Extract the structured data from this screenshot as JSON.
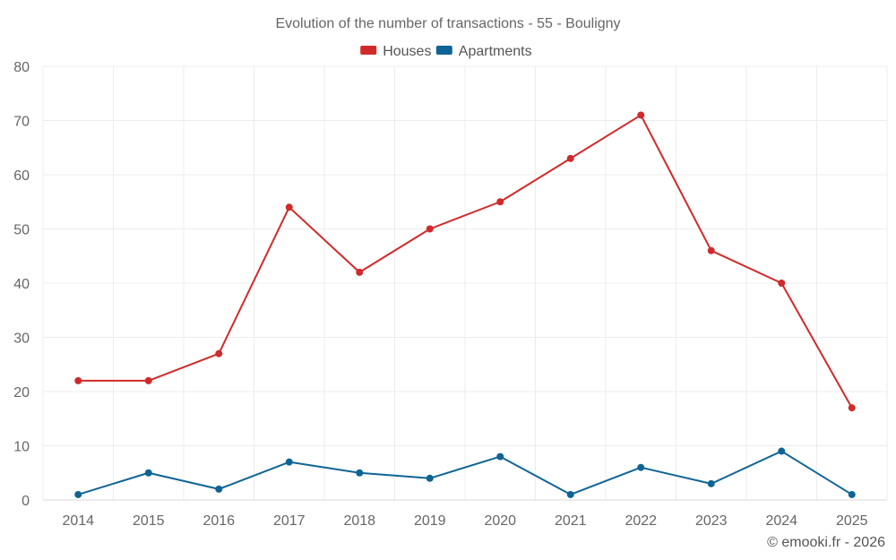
{
  "chart_data": {
    "type": "line",
    "title": "Evolution of the number of transactions - 55 - Bouligny",
    "xlabel": "",
    "ylabel": "",
    "categories": [
      "2014",
      "2015",
      "2016",
      "2017",
      "2018",
      "2019",
      "2020",
      "2021",
      "2022",
      "2023",
      "2024",
      "2025"
    ],
    "ylim": [
      0,
      80
    ],
    "yticks": [
      0,
      10,
      20,
      30,
      40,
      50,
      60,
      70,
      80
    ],
    "grid": true,
    "legend_position": "top-center",
    "series": [
      {
        "name": "Houses",
        "color": "#d12a2a",
        "values": [
          22,
          22,
          27,
          54,
          42,
          50,
          55,
          63,
          71,
          46,
          40,
          17
        ]
      },
      {
        "name": "Apartments",
        "color": "#0f6496",
        "values": [
          1,
          5,
          2,
          7,
          5,
          4,
          8,
          1,
          6,
          3,
          9,
          1
        ]
      }
    ]
  },
  "credit": "© emooki.fr - 2026"
}
